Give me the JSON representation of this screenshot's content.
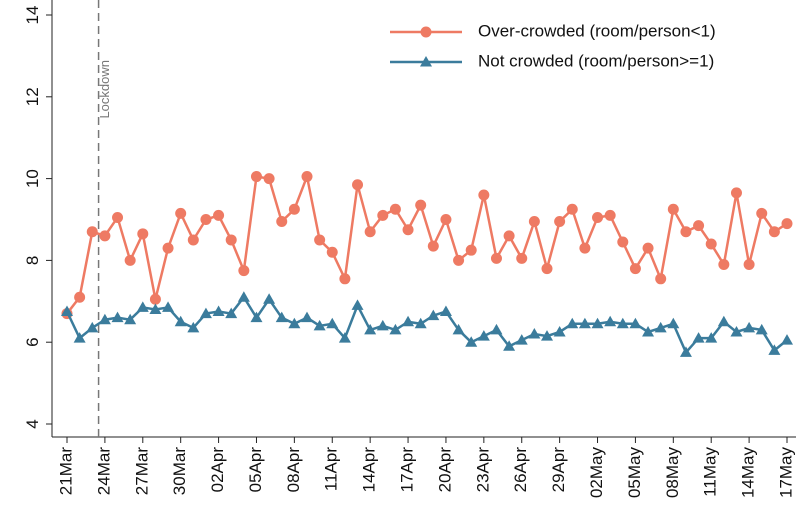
{
  "chart_data": {
    "type": "line",
    "categories": [
      "21Mar",
      null,
      null,
      "24Mar",
      null,
      null,
      "27Mar",
      null,
      null,
      "30Mar",
      null,
      null,
      "02Apr",
      null,
      null,
      "05Apr",
      null,
      null,
      "08Apr",
      null,
      null,
      "11Apr",
      null,
      null,
      "14Apr",
      null,
      null,
      "17Apr",
      null,
      null,
      "20Apr",
      null,
      null,
      "23Apr",
      null,
      null,
      "26Apr",
      null,
      null,
      "29Apr",
      null,
      null,
      "02May",
      null,
      null,
      "05May",
      null,
      null,
      "08May",
      null,
      null,
      "11May",
      null,
      null,
      "14May",
      null,
      null,
      "17May"
    ],
    "series": [
      {
        "name": "Over-crowded (room/person<1)",
        "color": "#ee7a63",
        "marker": "circle",
        "values": [
          6.7,
          7.1,
          8.7,
          8.6,
          9.05,
          8.0,
          8.65,
          7.05,
          8.3,
          9.15,
          8.5,
          9.0,
          9.1,
          8.5,
          7.75,
          10.05,
          10.0,
          8.95,
          9.25,
          10.05,
          8.5,
          8.2,
          7.55,
          9.85,
          8.7,
          9.1,
          9.25,
          8.75,
          9.35,
          8.35,
          9.0,
          8.0,
          8.25,
          9.6,
          8.05,
          8.6,
          8.05,
          8.95,
          7.8,
          8.95,
          9.25,
          8.3,
          9.05,
          9.1,
          8.45,
          7.8,
          8.3,
          7.55,
          9.25,
          8.7,
          8.85,
          8.4,
          7.9,
          9.65,
          7.9,
          9.15,
          8.7,
          8.9
        ]
      },
      {
        "name": "Not crowded (room/person>=1)",
        "color": "#3b7c9c",
        "marker": "triangle",
        "values": [
          6.75,
          6.1,
          6.35,
          6.55,
          6.6,
          6.55,
          6.85,
          6.8,
          6.85,
          6.5,
          6.35,
          6.7,
          6.75,
          6.7,
          7.1,
          6.6,
          7.05,
          6.6,
          6.45,
          6.6,
          6.4,
          6.45,
          6.1,
          6.9,
          6.3,
          6.4,
          6.3,
          6.5,
          6.45,
          6.65,
          6.75,
          6.3,
          6.0,
          6.15,
          6.3,
          5.9,
          6.05,
          6.2,
          6.15,
          6.25,
          6.45,
          6.45,
          6.45,
          6.5,
          6.45,
          6.45,
          6.25,
          6.35,
          6.45,
          5.75,
          6.1,
          6.1,
          6.5,
          6.25,
          6.35,
          6.3,
          5.8,
          6.05
        ]
      }
    ],
    "ylim": [
      4,
      14
    ],
    "yticks": [
      4,
      6,
      8,
      10,
      12,
      14
    ],
    "grid": false,
    "vline": {
      "x": 2.5,
      "label": "Lockdown"
    },
    "legend": "top-right"
  }
}
